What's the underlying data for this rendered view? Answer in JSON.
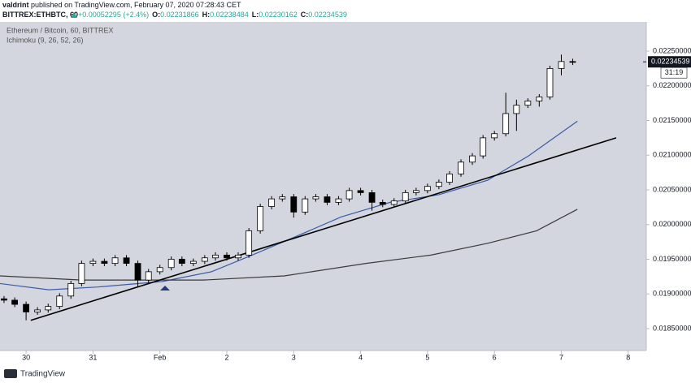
{
  "chart_data": {
    "type": "candlestick",
    "publisher": "valdrint",
    "published_text": "published on TradingView.com, February 07, 2020 07:28:43 CET",
    "symbol": "BITTREX:ETHBTC, 60",
    "change": "+0.00052295 (+2.4%)",
    "quote": [
      {
        "label": "O:",
        "value": "0.02231866"
      },
      {
        "label": "H:",
        "value": "0.02238484"
      },
      {
        "label": "L:",
        "value": "0.02230162"
      },
      {
        "label": "C:",
        "value": "0.02234539"
      }
    ],
    "title": "Ethereum / Bitcoin, 60, BITTREX",
    "indicator": "Ichimoku (9, 26, 52, 26)",
    "brand": "TradingView",
    "countdown": "31:19",
    "last_price": {
      "value": 0.02234539,
      "label": "0.02234539"
    },
    "up_color": "#ffffff",
    "down_color": "#000000",
    "x": [
      -0.33,
      -0.17,
      0,
      0.17,
      0.33,
      0.5,
      0.67,
      0.83,
      1,
      1.17,
      1.33,
      1.5,
      1.67,
      1.83,
      2,
      2.17,
      2.33,
      2.5,
      2.67,
      2.83,
      3,
      3.17,
      3.33,
      3.5,
      3.67,
      3.83,
      4,
      4.17,
      4.33,
      4.5,
      4.67,
      4.83,
      5,
      5.17,
      5.33,
      5.5,
      5.67,
      5.83,
      6,
      6.17,
      6.33,
      6.5,
      6.67,
      6.83,
      7,
      7.17,
      7.33,
      7.5,
      7.67,
      7.83,
      8,
      8.17
    ],
    "open": [
      0.01893,
      0.01891,
      0.01885,
      0.01874,
      0.01877,
      0.01882,
      0.01897,
      0.01915,
      0.01944,
      0.01947,
      0.01944,
      0.01952,
      0.01944,
      0.0192,
      0.01932,
      0.01938,
      0.0195,
      0.01944,
      0.01947,
      0.01952,
      0.01956,
      0.01952,
      0.01956,
      0.01991,
      0.02026,
      0.02037,
      0.0204,
      0.02018,
      0.02037,
      0.0204,
      0.02032,
      0.02037,
      0.02049,
      0.02046,
      0.02032,
      0.02029,
      0.02034,
      0.02046,
      0.02049,
      0.02055,
      0.02061,
      0.02073,
      0.0209,
      0.02099,
      0.02125,
      0.02131,
      0.0216,
      0.02172,
      0.02178,
      0.02184,
      0.02225,
      0.02235
    ],
    "high": [
      0.01897,
      0.01895,
      0.01889,
      0.01881,
      0.01886,
      0.01901,
      0.01919,
      0.01948,
      0.01951,
      0.01951,
      0.01956,
      0.01956,
      0.01948,
      0.01936,
      0.01942,
      0.01954,
      0.01954,
      0.01951,
      0.01956,
      0.0196,
      0.0196,
      0.0196,
      0.01995,
      0.0203,
      0.02041,
      0.02044,
      0.02044,
      0.02041,
      0.02044,
      0.02044,
      0.02041,
      0.02053,
      0.02053,
      0.0205,
      0.02036,
      0.02038,
      0.0205,
      0.02053,
      0.02059,
      0.02065,
      0.02077,
      0.02094,
      0.02103,
      0.02129,
      0.02135,
      0.0219,
      0.0218,
      0.02182,
      0.02188,
      0.02229,
      0.02245,
      0.02239
    ],
    "low": [
      0.01887,
      0.01881,
      0.01862,
      0.0187,
      0.01873,
      0.01878,
      0.01893,
      0.01911,
      0.0194,
      0.0194,
      0.0194,
      0.0194,
      0.0191,
      0.01916,
      0.01928,
      0.01934,
      0.0194,
      0.0194,
      0.01943,
      0.01948,
      0.01948,
      0.01948,
      0.01952,
      0.01987,
      0.02022,
      0.02033,
      0.0201,
      0.02014,
      0.02033,
      0.02028,
      0.02028,
      0.02033,
      0.02042,
      0.0202,
      0.02025,
      0.02025,
      0.0203,
      0.02042,
      0.02045,
      0.02051,
      0.02057,
      0.02069,
      0.02086,
      0.02095,
      0.02121,
      0.02127,
      0.02135,
      0.02168,
      0.0217,
      0.0218,
      0.02215,
      0.0223
    ],
    "close": [
      0.01891,
      0.01885,
      0.01874,
      0.01877,
      0.01882,
      0.01897,
      0.01915,
      0.01944,
      0.01947,
      0.01944,
      0.01952,
      0.01944,
      0.0192,
      0.01932,
      0.01938,
      0.0195,
      0.01944,
      0.01947,
      0.01952,
      0.01956,
      0.01952,
      0.01956,
      0.01991,
      0.02026,
      0.02037,
      0.0204,
      0.02018,
      0.02037,
      0.0204,
      0.02032,
      0.02037,
      0.02049,
      0.02046,
      0.02032,
      0.02029,
      0.02034,
      0.02046,
      0.02049,
      0.02055,
      0.02061,
      0.02073,
      0.0209,
      0.02099,
      0.02125,
      0.02131,
      0.0216,
      0.02172,
      0.02178,
      0.02184,
      0.02225,
      0.02235,
      0.02234
    ],
    "overlays": [
      {
        "color": "#3c5aa6",
        "width": 1.2,
        "x": [
          -0.39,
          0.34,
          1.07,
          2.04,
          2.77,
          3.38,
          3.99,
          4.71,
          5.44,
          6.17,
          6.9,
          7.51,
          8.24
        ],
        "values": [
          0.01915,
          0.01906,
          0.0191,
          0.01918,
          0.01932,
          0.01956,
          0.01981,
          0.02011,
          0.02032,
          0.02043,
          0.02064,
          0.02099,
          0.02149
        ]
      },
      {
        "color": "#3a3a3a",
        "width": 1.2,
        "x": [
          -0.39,
          0.83,
          2.65,
          3.86,
          5.08,
          6.05,
          6.9,
          7.63,
          8.24
        ],
        "values": [
          0.01926,
          0.0192,
          0.0192,
          0.01926,
          0.01944,
          0.01956,
          0.01973,
          0.01991,
          0.02022
        ]
      },
      {
        "color": "#000000",
        "width": 1.6,
        "x": [
          0.07,
          8.82
        ],
        "values": [
          0.01862,
          0.02125
        ]
      }
    ],
    "xlim": [
      -0.39,
      9.27
    ],
    "ylim": [
      0.018184,
      0.022921
    ],
    "xticks": [
      {
        "value": 0,
        "label": "30"
      },
      {
        "value": 1,
        "label": "31"
      },
      {
        "value": 2,
        "label": "Feb"
      },
      {
        "value": 3,
        "label": "2"
      },
      {
        "value": 4,
        "label": "3"
      },
      {
        "value": 5,
        "label": "4"
      },
      {
        "value": 6,
        "label": "5"
      },
      {
        "value": 7,
        "label": "6"
      },
      {
        "value": 8,
        "label": "7"
      },
      {
        "value": 9,
        "label": "8"
      }
    ],
    "yticks": [
      {
        "value": 0.0185,
        "label": "0.01850000"
      },
      {
        "value": 0.019,
        "label": "0.01900000"
      },
      {
        "value": 0.0195,
        "label": "0.01950000"
      },
      {
        "value": 0.02,
        "label": "0.02000000"
      },
      {
        "value": 0.0205,
        "label": "0.02050000"
      },
      {
        "value": 0.021,
        "label": "0.02100000"
      },
      {
        "value": 0.0215,
        "label": "0.02150000"
      },
      {
        "value": 0.022,
        "label": "0.02200000"
      },
      {
        "value": 0.0225,
        "label": "0.02250000"
      }
    ],
    "grid": false
  }
}
